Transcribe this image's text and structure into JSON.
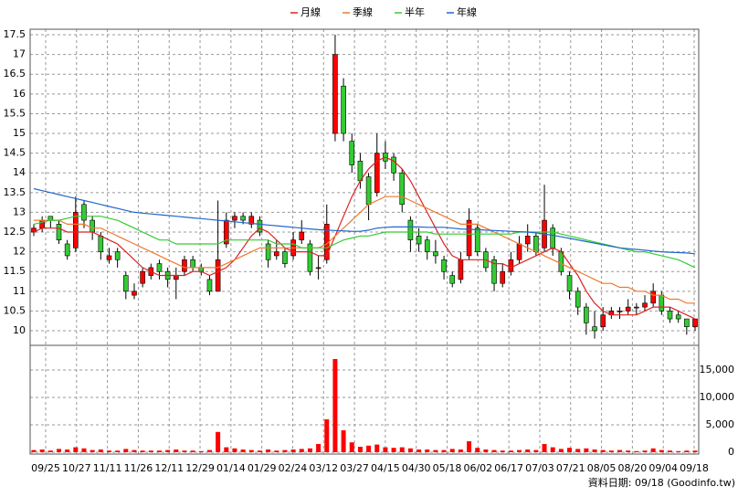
{
  "chart_data": {
    "type": "candlestick",
    "grid": true,
    "xticks": [
      "09/25",
      "10/27",
      "11/11",
      "11/26",
      "12/11",
      "12/29",
      "01/14",
      "01/29",
      "02/24",
      "03/12",
      "03/27",
      "04/15",
      "04/30",
      "05/18",
      "06/02",
      "06/17",
      "07/03",
      "07/21",
      "08/05",
      "08/20",
      "09/04",
      "09/18"
    ],
    "ylim": [
      9.63,
      17.64
    ],
    "yticks": [
      10,
      10.5,
      11,
      11.5,
      12,
      12.5,
      13,
      13.5,
      14,
      14.5,
      15,
      15.5,
      16,
      16.5,
      17,
      17.5
    ],
    "up_color": "#ff0000",
    "down_color": "#33cc33",
    "open": [
      12.5,
      12.6,
      12.9,
      12.7,
      12.2,
      12.1,
      13.2,
      12.8,
      12.4,
      11.8,
      12.0,
      11.4,
      10.9,
      11.2,
      11.4,
      11.7,
      11.5,
      11.3,
      11.5,
      11.8,
      11.6,
      11.3,
      11.0,
      12.2,
      12.8,
      12.9,
      12.7,
      12.8,
      12.2,
      11.9,
      12.0,
      11.9,
      12.3,
      12.2,
      11.6,
      11.8,
      15.0,
      16.2,
      14.8,
      14.3,
      13.9,
      13.5,
      14.5,
      14.4,
      14.0,
      12.8,
      12.4,
      12.3,
      12.0,
      11.8,
      11.4,
      11.3,
      11.9,
      12.6,
      12.0,
      11.8,
      11.2,
      11.5,
      11.8,
      12.2,
      12.4,
      12.1,
      12.6,
      12.0,
      11.4,
      11.0,
      10.6,
      10.1,
      10.1,
      10.4,
      10.5,
      10.5,
      10.6,
      10.6,
      10.7,
      10.9,
      10.5,
      10.4,
      10.3,
      10.1
    ],
    "high": [
      12.7,
      12.9,
      12.9,
      12.8,
      12.3,
      13.4,
      13.3,
      12.9,
      12.5,
      12.1,
      12.1,
      11.5,
      11.2,
      11.6,
      11.7,
      11.8,
      11.6,
      11.6,
      11.9,
      11.9,
      11.7,
      11.4,
      13.3,
      13.0,
      13.0,
      13.0,
      13.0,
      12.9,
      12.3,
      12.3,
      12.1,
      12.5,
      12.8,
      12.3,
      11.9,
      13.2,
      17.5,
      16.4,
      15.0,
      14.5,
      14.0,
      15.0,
      14.8,
      14.5,
      14.1,
      12.9,
      12.6,
      12.4,
      12.3,
      11.9,
      11.5,
      12.0,
      13.1,
      12.7,
      12.1,
      11.9,
      11.7,
      12.0,
      12.4,
      12.7,
      12.5,
      13.7,
      12.7,
      12.1,
      11.5,
      11.1,
      10.7,
      10.5,
      10.6,
      10.6,
      10.6,
      10.8,
      10.7,
      10.9,
      11.2,
      11.0,
      10.6,
      10.5,
      10.3,
      10.3
    ],
    "low": [
      12.4,
      12.5,
      12.6,
      12.2,
      11.8,
      12.0,
      12.6,
      12.3,
      11.8,
      11.7,
      11.6,
      10.8,
      10.8,
      11.1,
      11.3,
      11.3,
      11.1,
      10.8,
      11.4,
      11.5,
      11.4,
      10.9,
      11.0,
      12.1,
      12.6,
      12.7,
      12.6,
      12.4,
      11.6,
      11.8,
      11.6,
      11.8,
      12.2,
      11.4,
      11.3,
      11.7,
      14.8,
      14.8,
      14.0,
      13.6,
      12.8,
      13.4,
      14.1,
      13.8,
      13.0,
      12.0,
      12.0,
      11.8,
      11.7,
      11.3,
      11.1,
      11.2,
      11.8,
      11.9,
      11.5,
      11.0,
      11.1,
      11.4,
      11.7,
      12.0,
      11.9,
      12.0,
      11.9,
      11.4,
      10.8,
      10.4,
      9.9,
      9.8,
      10.0,
      10.3,
      10.3,
      10.4,
      10.4,
      10.5,
      10.6,
      10.4,
      10.2,
      10.2,
      9.9,
      10.0
    ],
    "close": [
      12.6,
      12.8,
      12.8,
      12.3,
      11.9,
      13.0,
      12.8,
      12.5,
      12.0,
      11.9,
      11.8,
      11.0,
      11.0,
      11.5,
      11.6,
      11.5,
      11.3,
      11.4,
      11.8,
      11.6,
      11.5,
      11.0,
      11.8,
      12.8,
      12.9,
      12.8,
      12.9,
      12.5,
      11.8,
      12.0,
      11.7,
      12.3,
      12.5,
      11.5,
      11.6,
      12.7,
      17.0,
      15.0,
      14.2,
      13.8,
      13.2,
      14.5,
      14.3,
      14.0,
      13.2,
      12.3,
      12.2,
      12.0,
      11.9,
      11.5,
      11.2,
      11.8,
      12.8,
      12.0,
      11.6,
      11.2,
      11.5,
      11.8,
      12.2,
      12.4,
      12.0,
      12.8,
      12.1,
      11.5,
      11.0,
      10.6,
      10.2,
      10.0,
      10.4,
      10.5,
      10.5,
      10.6,
      10.6,
      10.7,
      11.0,
      10.5,
      10.3,
      10.3,
      10.1,
      10.3
    ],
    "volume": {
      "color": "#ff0000",
      "ylim": [
        0,
        19500
      ],
      "yticks": [
        0,
        {
          "value": 5000,
          "label": "5,000"
        },
        {
          "value": 10000,
          "label": "10,000"
        },
        {
          "value": 15000,
          "label": "15,000"
        }
      ],
      "values": [
        400,
        500,
        300,
        600,
        500,
        900,
        700,
        400,
        500,
        300,
        300,
        600,
        400,
        300,
        300,
        300,
        400,
        500,
        300,
        300,
        200,
        400,
        3700,
        900,
        700,
        500,
        400,
        300,
        500,
        300,
        400,
        500,
        600,
        700,
        1500,
        6000,
        17000,
        4000,
        1800,
        1000,
        1200,
        1400,
        900,
        800,
        900,
        700,
        500,
        500,
        400,
        400,
        600,
        500,
        2000,
        800,
        500,
        400,
        300,
        300,
        400,
        500,
        400,
        1500,
        900,
        600,
        800,
        600,
        700,
        500,
        400,
        300,
        400,
        300,
        200,
        300,
        700,
        400,
        300,
        200,
        300,
        300
      ]
    },
    "series": [
      {
        "name": "月線",
        "color": "#dd2222",
        "values": [
          12.5,
          12.6,
          12.6,
          12.6,
          12.5,
          12.5,
          12.5,
          12.5,
          12.4,
          12.3,
          12.2,
          12.0,
          11.8,
          11.6,
          11.5,
          11.4,
          11.4,
          11.4,
          11.4,
          11.5,
          11.5,
          11.4,
          11.5,
          11.6,
          11.8,
          12.1,
          12.4,
          12.6,
          12.5,
          12.3,
          12.1,
          12.0,
          12.0,
          12.0,
          11.9,
          11.9,
          12.4,
          12.9,
          13.4,
          13.8,
          14.1,
          14.3,
          14.4,
          14.3,
          14.1,
          13.8,
          13.4,
          13.0,
          12.6,
          12.2,
          11.9,
          11.8,
          11.8,
          11.8,
          11.8,
          11.7,
          11.7,
          11.6,
          11.7,
          11.8,
          11.9,
          12.0,
          12.1,
          12.0,
          11.7,
          11.4,
          11.0,
          10.7,
          10.5,
          10.4,
          10.4,
          10.4,
          10.4,
          10.5,
          10.6,
          10.6,
          10.6,
          10.5,
          10.4,
          10.3
        ]
      },
      {
        "name": "季線",
        "color": "#f07830",
        "values": [
          12.8,
          12.8,
          12.8,
          12.8,
          12.7,
          12.7,
          12.7,
          12.6,
          12.6,
          12.5,
          12.4,
          12.3,
          12.2,
          12.1,
          12.0,
          11.9,
          11.8,
          11.7,
          11.6,
          11.6,
          11.6,
          11.6,
          11.6,
          11.7,
          11.8,
          11.9,
          12.0,
          12.1,
          12.1,
          12.1,
          12.1,
          12.1,
          12.1,
          12.1,
          12.1,
          12.2,
          12.4,
          12.6,
          12.8,
          13.0,
          13.2,
          13.3,
          13.4,
          13.4,
          13.4,
          13.3,
          13.2,
          13.1,
          13.0,
          12.9,
          12.8,
          12.7,
          12.7,
          12.7,
          12.6,
          12.5,
          12.4,
          12.3,
          12.2,
          12.1,
          12.0,
          11.9,
          11.8,
          11.7,
          11.6,
          11.5,
          11.4,
          11.3,
          11.2,
          11.2,
          11.1,
          11.1,
          11.0,
          11.0,
          10.9,
          10.9,
          10.8,
          10.8,
          10.7,
          10.7
        ]
      },
      {
        "name": "半年",
        "color": "#33cc33",
        "values": [
          12.7,
          12.75,
          12.8,
          12.8,
          12.85,
          12.9,
          12.9,
          12.9,
          12.9,
          12.85,
          12.8,
          12.7,
          12.6,
          12.5,
          12.4,
          12.3,
          12.3,
          12.2,
          12.2,
          12.2,
          12.2,
          12.2,
          12.2,
          12.3,
          12.3,
          12.3,
          12.3,
          12.3,
          12.3,
          12.2,
          12.2,
          12.2,
          12.1,
          12.1,
          12.1,
          12.1,
          12.2,
          12.3,
          12.35,
          12.4,
          12.4,
          12.45,
          12.5,
          12.5,
          12.5,
          12.5,
          12.5,
          12.5,
          12.45,
          12.45,
          12.45,
          12.45,
          12.45,
          12.45,
          12.45,
          12.45,
          12.45,
          12.45,
          12.5,
          12.5,
          12.5,
          12.5,
          12.5,
          12.45,
          12.4,
          12.35,
          12.3,
          12.25,
          12.2,
          12.15,
          12.1,
          12.05,
          12.0,
          12.0,
          11.95,
          11.9,
          11.85,
          11.8,
          11.7,
          11.6
        ]
      },
      {
        "name": "年線",
        "color": "#2266cc",
        "values": [
          13.6,
          13.55,
          13.5,
          13.45,
          13.4,
          13.35,
          13.3,
          13.25,
          13.2,
          13.15,
          13.1,
          13.05,
          13.0,
          12.98,
          12.96,
          12.94,
          12.92,
          12.9,
          12.88,
          12.86,
          12.84,
          12.82,
          12.8,
          12.78,
          12.76,
          12.74,
          12.72,
          12.7,
          12.68,
          12.66,
          12.64,
          12.62,
          12.6,
          12.58,
          12.56,
          12.55,
          12.54,
          12.53,
          12.52,
          12.52,
          12.55,
          12.6,
          12.62,
          12.63,
          12.63,
          12.63,
          12.63,
          12.62,
          12.62,
          12.62,
          12.6,
          12.58,
          12.57,
          12.56,
          12.55,
          12.54,
          12.53,
          12.52,
          12.51,
          12.5,
          12.48,
          12.45,
          12.42,
          12.38,
          12.34,
          12.3,
          12.26,
          12.22,
          12.18,
          12.14,
          12.1,
          12.08,
          12.06,
          12.04,
          12.02,
          12.0,
          11.99,
          11.98,
          11.97,
          11.95
        ]
      }
    ],
    "footer": "資料日期: 09/18 (Goodinfo.tw)"
  }
}
